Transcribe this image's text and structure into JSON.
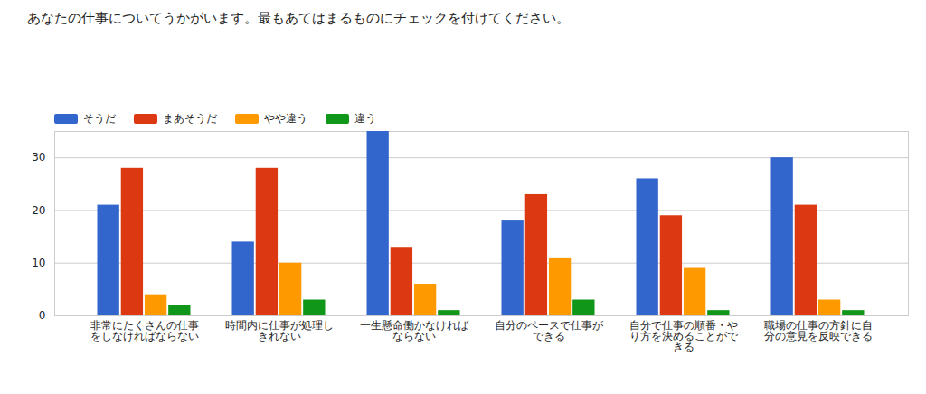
{
  "chart_data": {
    "type": "bar",
    "title": "あなたの仕事についてうかがいます。最もあてはまるものにチェックを付けてください。",
    "categories": [
      "非常にたくさんの仕事をしなければならない",
      "時間内に仕事が処理しきれない",
      "一生懸命働かなければならない",
      "自分のペースで仕事ができる",
      "自分で仕事の順番・やり方を決めることができる",
      "職場の仕事の方針に自分の意見を反映できる"
    ],
    "series": [
      {
        "name": "そうだ",
        "color": "#3366cc",
        "values": [
          21,
          14,
          35,
          18,
          26,
          30
        ]
      },
      {
        "name": "まあそうだ",
        "color": "#dc3912",
        "values": [
          28,
          28,
          13,
          23,
          19,
          21
        ]
      },
      {
        "name": "やや違う",
        "color": "#ff9900",
        "values": [
          4,
          10,
          6,
          11,
          9,
          3
        ]
      },
      {
        "name": "違う",
        "color": "#109618",
        "values": [
          2,
          3,
          1,
          3,
          1,
          1
        ]
      }
    ],
    "ylim": [
      0,
      35
    ],
    "yticks": [
      0,
      10,
      20,
      30
    ],
    "grid": true,
    "legend": "top"
  }
}
